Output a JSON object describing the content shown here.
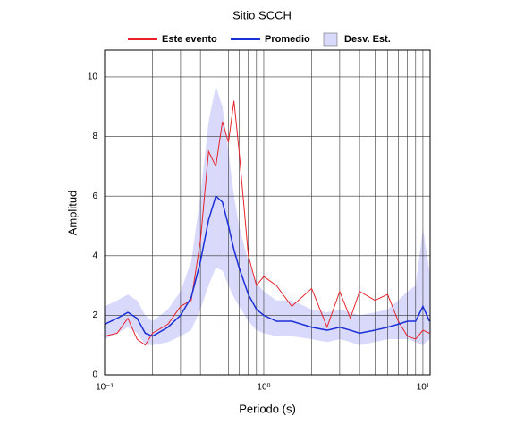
{
  "chart_data": {
    "type": "line",
    "title": "Sitio SCCH",
    "xlabel": "Periodo (s)",
    "ylabel": "Amplitud",
    "xscale": "log",
    "grid": true,
    "xlim": [
      0.1,
      11.1
    ],
    "ylim": [
      0,
      10.9
    ],
    "xticks": [
      {
        "value": 0.1,
        "label": "10⁻¹"
      },
      {
        "value": 1,
        "label": "10⁰"
      },
      {
        "value": 10,
        "label": "10¹"
      }
    ],
    "xminor": [
      0.2,
      0.3,
      0.4,
      0.5,
      0.6,
      0.7,
      0.8,
      0.9,
      2,
      3,
      4,
      5,
      6,
      7,
      8,
      9
    ],
    "yticks": [
      0,
      2,
      4,
      6,
      8,
      10
    ],
    "x": [
      0.1,
      0.12,
      0.14,
      0.16,
      0.18,
      0.2,
      0.25,
      0.3,
      0.35,
      0.4,
      0.45,
      0.5,
      0.55,
      0.6,
      0.65,
      0.7,
      0.8,
      0.9,
      1.0,
      1.2,
      1.5,
      2,
      2.5,
      3,
      3.5,
      4,
      5,
      6,
      7,
      8,
      9,
      10,
      11
    ],
    "band": {
      "name": "Desv. Est.",
      "color": "#d9d9fb",
      "lower": [
        1.2,
        1.4,
        1.6,
        1.4,
        1.0,
        1.0,
        1.1,
        1.3,
        1.5,
        2.2,
        3.0,
        3.6,
        3.5,
        3.0,
        2.6,
        2.3,
        1.8,
        1.5,
        1.4,
        1.3,
        1.3,
        1.2,
        1.1,
        1.2,
        1.1,
        1.0,
        1.1,
        1.2,
        1.2,
        1.2,
        1.1,
        1.0,
        1.2
      ],
      "upper": [
        2.3,
        2.5,
        2.7,
        2.5,
        2.0,
        1.8,
        2.2,
        2.8,
        3.8,
        6.0,
        8.5,
        9.7,
        9.0,
        7.5,
        6.0,
        5.0,
        3.8,
        3.1,
        2.8,
        2.5,
        2.5,
        2.2,
        2.1,
        2.2,
        2.1,
        2.0,
        2.1,
        2.2,
        2.5,
        2.8,
        3.0,
        4.9,
        3.5
      ]
    },
    "series": [
      {
        "name": "Este evento",
        "color": "#e8232a",
        "values": [
          1.3,
          1.4,
          1.9,
          1.2,
          1.0,
          1.4,
          1.7,
          2.3,
          2.5,
          4.5,
          7.5,
          7.0,
          8.5,
          7.8,
          9.2,
          7.5,
          4.0,
          3.0,
          3.3,
          3.0,
          2.3,
          2.9,
          1.6,
          2.8,
          1.9,
          2.8,
          2.5,
          2.7,
          1.8,
          1.3,
          1.2,
          1.5,
          1.4
        ]
      },
      {
        "name": "Promedio",
        "color": "#1a2fd6",
        "values": [
          1.7,
          1.9,
          2.1,
          1.9,
          1.4,
          1.3,
          1.6,
          2.0,
          2.6,
          3.8,
          5.2,
          6.0,
          5.8,
          5.0,
          4.2,
          3.6,
          2.7,
          2.2,
          2.0,
          1.8,
          1.8,
          1.6,
          1.5,
          1.6,
          1.5,
          1.4,
          1.5,
          1.6,
          1.7,
          1.8,
          1.8,
          2.3,
          1.8
        ]
      }
    ]
  }
}
